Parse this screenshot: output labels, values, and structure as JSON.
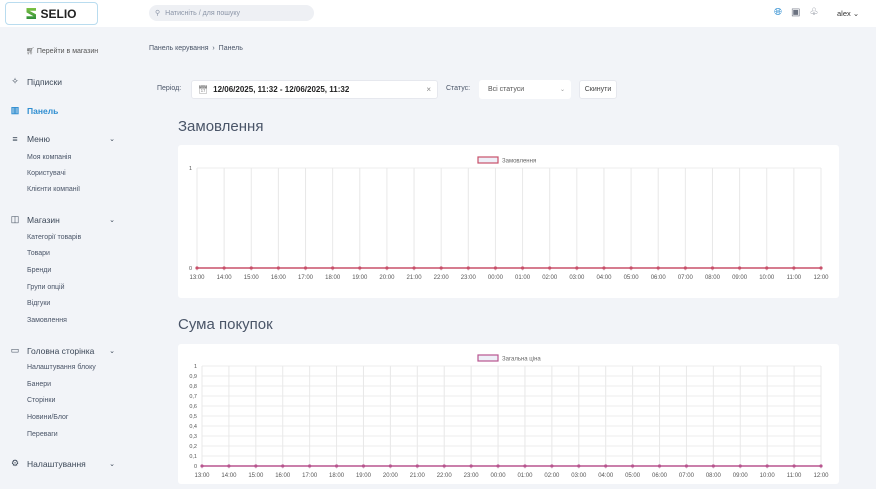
{
  "header": {
    "logo": "SELIO",
    "search_placeholder": "Натисніть / для пошуку",
    "user": "alex"
  },
  "sidebar": {
    "shop_link": "Перейти в магазин",
    "items": [
      {
        "label": "Підписки",
        "icon": "sparkles-icon"
      },
      {
        "label": "Панель",
        "icon": "chart-icon",
        "active": true
      },
      {
        "label": "Меню",
        "icon": "menu-icon",
        "sub": [
          "Моя компанія",
          "Користувачі",
          "Клієнти компанії"
        ]
      },
      {
        "label": "Магазин",
        "icon": "bag-icon",
        "sub": [
          "Категорії товарів",
          "Товари",
          "Бренди",
          "Групи опцій",
          "Відгуки",
          "Замовлення"
        ]
      },
      {
        "label": "Головна сторінка",
        "icon": "box-icon",
        "sub": [
          "Налаштування блоку",
          "Банери",
          "Сторінки",
          "Новини/Блог",
          "Переваги"
        ]
      },
      {
        "label": "Налаштування",
        "icon": "gear-icon"
      }
    ]
  },
  "breadcrumb": [
    "Панель керування",
    "Панель"
  ],
  "filters": {
    "period_label": "Період:",
    "period_value": "12/06/2025, 11:32 - 12/06/2025, 11:32",
    "status_label": "Статус:",
    "status_value": "Всі статуси",
    "reset": "Скинути"
  },
  "chart_data": [
    {
      "type": "line",
      "title": "Замовлення",
      "legend": "Замовлення",
      "legend_position": "top",
      "color": "#c8506a",
      "grid": true,
      "categories": [
        "13:00",
        "14:00",
        "15:00",
        "16:00",
        "17:00",
        "18:00",
        "19:00",
        "20:00",
        "21:00",
        "22:00",
        "23:00",
        "00:00",
        "01:00",
        "02:00",
        "03:00",
        "04:00",
        "05:00",
        "06:00",
        "07:00",
        "08:00",
        "09:00",
        "10:00",
        "11:00",
        "12:00"
      ],
      "values": [
        0,
        0,
        0,
        0,
        0,
        0,
        0,
        0,
        0,
        0,
        0,
        0,
        0,
        0,
        0,
        0,
        0,
        0,
        0,
        0,
        0,
        0,
        0,
        0
      ],
      "yticks": [
        "0",
        "1"
      ],
      "ylim": [
        0,
        1
      ]
    },
    {
      "type": "line",
      "title": "Сума покупок",
      "legend": "Загальна ціна",
      "legend_position": "top",
      "color": "#b8558f",
      "grid": true,
      "categories": [
        "13:00",
        "14:00",
        "15:00",
        "16:00",
        "17:00",
        "18:00",
        "19:00",
        "20:00",
        "21:00",
        "22:00",
        "23:00",
        "00:00",
        "01:00",
        "02:00",
        "03:00",
        "04:00",
        "05:00",
        "06:00",
        "07:00",
        "08:00",
        "09:00",
        "10:00",
        "11:00",
        "12:00"
      ],
      "values": [
        0,
        0,
        0,
        0,
        0,
        0,
        0,
        0,
        0,
        0,
        0,
        0,
        0,
        0,
        0,
        0,
        0,
        0,
        0,
        0,
        0,
        0,
        0,
        0
      ],
      "yticks": [
        "0",
        "0,1",
        "0,2",
        "0,3",
        "0,4",
        "0,5",
        "0,6",
        "0,7",
        "0,8",
        "0,9",
        "1"
      ],
      "ylim": [
        0,
        1
      ]
    }
  ]
}
